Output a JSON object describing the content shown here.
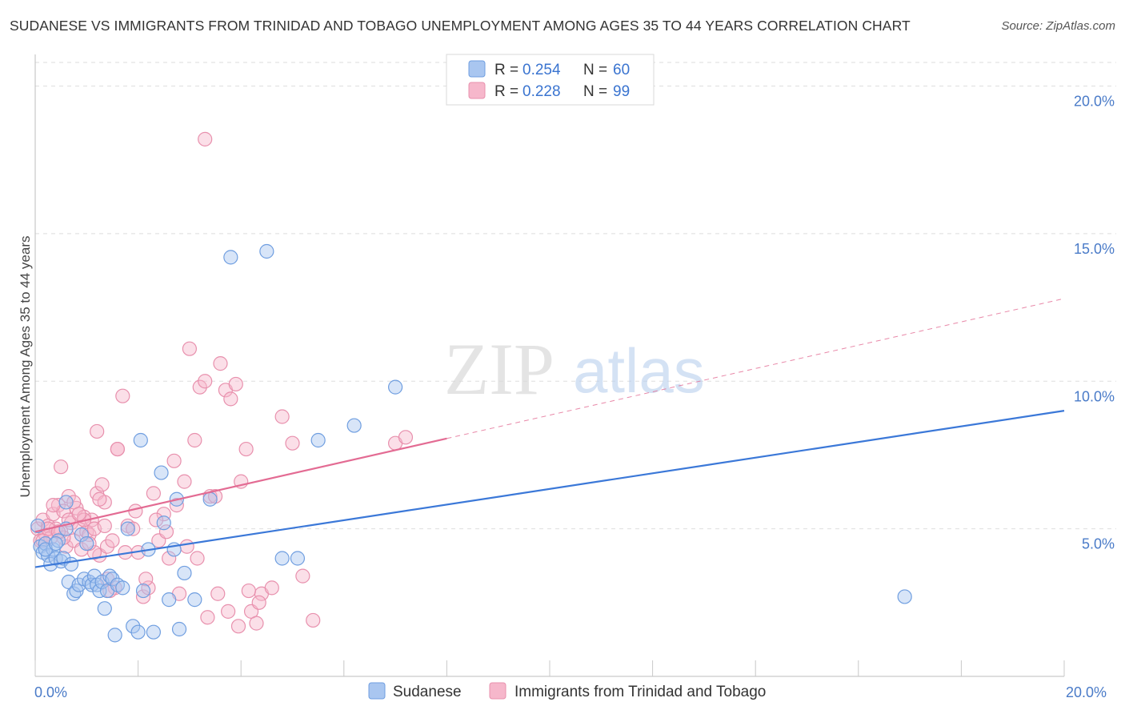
{
  "title": "SUDANESE VS IMMIGRANTS FROM TRINIDAD AND TOBAGO UNEMPLOYMENT AMONG AGES 35 TO 44 YEARS CORRELATION CHART",
  "source": "Source: ZipAtlas.com",
  "watermark": {
    "zip": "ZIP",
    "atlas": "atlas"
  },
  "colors": {
    "blue": "#3b78d8",
    "blue_fill": "#a9c6f0",
    "pink": "#e36b93",
    "pink_fill": "#f6b7cb"
  },
  "legend_top": [
    {
      "r_label": "R =",
      "r_value": "0.254",
      "n_label": "N =",
      "n_value": "60"
    },
    {
      "r_label": "R =",
      "r_value": "0.228",
      "n_label": "N =",
      "n_value": "99"
    }
  ],
  "chart_data": {
    "type": "scatter",
    "xlabel": "",
    "ylabel": "Unemployment Among Ages 35 to 44 years",
    "xlim": [
      0,
      20
    ],
    "ylim": [
      0,
      20.8
    ],
    "x_tick_labels": [
      "0.0%",
      "20.0%"
    ],
    "y_ticks": [
      5,
      10,
      15,
      20
    ],
    "y_tick_labels": [
      "5.0%",
      "10.0%",
      "15.0%",
      "20.0%"
    ],
    "grid": true,
    "legend_position": "bottom",
    "series": [
      {
        "name": "Sudanese",
        "color": "#3b78d8",
        "trend": {
          "x": [
            0,
            20
          ],
          "y": [
            3.7,
            9.0
          ],
          "dashed_from": null
        },
        "points": [
          [
            0.05,
            5.1
          ],
          [
            0.1,
            4.4
          ],
          [
            0.15,
            4.2
          ],
          [
            0.2,
            4.5
          ],
          [
            0.25,
            4.1
          ],
          [
            0.3,
            3.8
          ],
          [
            0.35,
            4.3
          ],
          [
            0.4,
            4.0
          ],
          [
            0.45,
            4.6
          ],
          [
            0.5,
            3.9
          ],
          [
            0.55,
            4.0
          ],
          [
            0.6,
            5.9
          ],
          [
            0.65,
            3.2
          ],
          [
            0.7,
            3.8
          ],
          [
            0.75,
            2.8
          ],
          [
            0.8,
            2.9
          ],
          [
            0.85,
            3.1
          ],
          [
            0.9,
            4.8
          ],
          [
            0.95,
            3.3
          ],
          [
            1.0,
            4.5
          ],
          [
            1.05,
            3.2
          ],
          [
            1.1,
            3.1
          ],
          [
            1.15,
            3.4
          ],
          [
            1.2,
            3.1
          ],
          [
            1.25,
            2.9
          ],
          [
            1.3,
            3.2
          ],
          [
            1.35,
            2.3
          ],
          [
            1.4,
            2.9
          ],
          [
            1.45,
            3.4
          ],
          [
            1.5,
            3.3
          ],
          [
            1.55,
            1.4
          ],
          [
            1.6,
            3.1
          ],
          [
            1.7,
            3.0
          ],
          [
            1.8,
            5.0
          ],
          [
            1.9,
            1.7
          ],
          [
            2.0,
            1.5
          ],
          [
            2.05,
            8.0
          ],
          [
            2.1,
            2.9
          ],
          [
            2.2,
            4.3
          ],
          [
            2.3,
            1.5
          ],
          [
            2.45,
            6.9
          ],
          [
            2.5,
            5.2
          ],
          [
            2.6,
            2.6
          ],
          [
            2.7,
            4.3
          ],
          [
            2.75,
            6.0
          ],
          [
            2.8,
            1.6
          ],
          [
            2.9,
            3.5
          ],
          [
            3.1,
            2.6
          ],
          [
            3.4,
            6.0
          ],
          [
            3.8,
            14.2
          ],
          [
            4.5,
            14.4
          ],
          [
            4.8,
            4.0
          ],
          [
            5.1,
            4.0
          ],
          [
            5.5,
            8.0
          ],
          [
            6.2,
            8.5
          ],
          [
            7.0,
            9.8
          ],
          [
            16.9,
            2.7
          ],
          [
            0.2,
            4.3
          ],
          [
            0.4,
            4.5
          ],
          [
            0.6,
            5.0
          ]
        ]
      },
      {
        "name": "Immigrants from Trinidad and Tobago",
        "color": "#e36b93",
        "trend": {
          "x": [
            0,
            20
          ],
          "y": [
            4.9,
            12.8
          ],
          "dashed_from": 8.0
        },
        "points": [
          [
            0.05,
            5.0
          ],
          [
            0.1,
            4.6
          ],
          [
            0.15,
            5.3
          ],
          [
            0.2,
            4.8
          ],
          [
            0.25,
            5.1
          ],
          [
            0.3,
            4.7
          ],
          [
            0.35,
            5.5
          ],
          [
            0.4,
            5.0
          ],
          [
            0.45,
            5.8
          ],
          [
            0.5,
            4.9
          ],
          [
            0.55,
            5.6
          ],
          [
            0.6,
            4.4
          ],
          [
            0.65,
            6.1
          ],
          [
            0.7,
            5.2
          ],
          [
            0.75,
            4.6
          ],
          [
            0.8,
            5.7
          ],
          [
            0.85,
            5.0
          ],
          [
            0.9,
            4.3
          ],
          [
            0.95,
            5.4
          ],
          [
            1.0,
            4.9
          ],
          [
            1.05,
            4.8
          ],
          [
            1.1,
            5.3
          ],
          [
            1.15,
            5.0
          ],
          [
            1.2,
            6.2
          ],
          [
            1.25,
            4.1
          ],
          [
            1.3,
            6.5
          ],
          [
            1.35,
            5.9
          ],
          [
            1.4,
            4.4
          ],
          [
            1.5,
            4.6
          ],
          [
            1.6,
            7.7
          ],
          [
            1.7,
            9.5
          ],
          [
            1.8,
            5.1
          ],
          [
            1.9,
            5.0
          ],
          [
            2.0,
            4.2
          ],
          [
            2.1,
            2.7
          ],
          [
            2.2,
            3.0
          ],
          [
            2.3,
            6.2
          ],
          [
            2.4,
            4.6
          ],
          [
            2.5,
            5.5
          ],
          [
            2.6,
            4.0
          ],
          [
            2.7,
            7.3
          ],
          [
            2.8,
            2.8
          ],
          [
            2.9,
            6.6
          ],
          [
            3.0,
            11.1
          ],
          [
            3.1,
            8.0
          ],
          [
            3.2,
            9.8
          ],
          [
            3.3,
            10.0
          ],
          [
            3.4,
            6.1
          ],
          [
            3.5,
            6.1
          ],
          [
            3.6,
            10.6
          ],
          [
            3.7,
            9.7
          ],
          [
            3.8,
            9.4
          ],
          [
            3.9,
            9.9
          ],
          [
            4.0,
            6.6
          ],
          [
            4.1,
            7.7
          ],
          [
            4.2,
            2.2
          ],
          [
            4.3,
            1.8
          ],
          [
            4.4,
            2.8
          ],
          [
            4.6,
            3.0
          ],
          [
            4.8,
            8.8
          ],
          [
            5.0,
            7.9
          ],
          [
            5.2,
            3.4
          ],
          [
            5.4,
            1.9
          ],
          [
            7.0,
            7.9
          ],
          [
            7.2,
            8.1
          ],
          [
            3.3,
            18.2
          ],
          [
            1.2,
            8.3
          ],
          [
            0.5,
            7.1
          ],
          [
            1.6,
            7.7
          ],
          [
            1.4,
            3.3
          ],
          [
            0.15,
            4.6
          ],
          [
            0.35,
            5.8
          ],
          [
            0.55,
            4.7
          ],
          [
            0.75,
            5.9
          ],
          [
            0.95,
            5.3
          ],
          [
            1.15,
            4.2
          ],
          [
            1.35,
            5.1
          ],
          [
            1.55,
            3.0
          ],
          [
            1.75,
            4.2
          ],
          [
            1.95,
            5.6
          ],
          [
            2.15,
            3.3
          ],
          [
            2.35,
            5.3
          ],
          [
            2.55,
            4.9
          ],
          [
            2.75,
            5.8
          ],
          [
            2.95,
            4.4
          ],
          [
            3.15,
            4.0
          ],
          [
            3.35,
            2.0
          ],
          [
            3.55,
            2.8
          ],
          [
            3.75,
            2.2
          ],
          [
            3.95,
            1.7
          ],
          [
            4.15,
            2.9
          ],
          [
            4.35,
            2.5
          ],
          [
            0.25,
            5.0
          ],
          [
            0.45,
            4.9
          ],
          [
            0.65,
            5.3
          ],
          [
            0.85,
            5.5
          ],
          [
            1.05,
            4.5
          ],
          [
            1.25,
            6.0
          ],
          [
            1.45,
            2.9
          ]
        ]
      }
    ]
  }
}
